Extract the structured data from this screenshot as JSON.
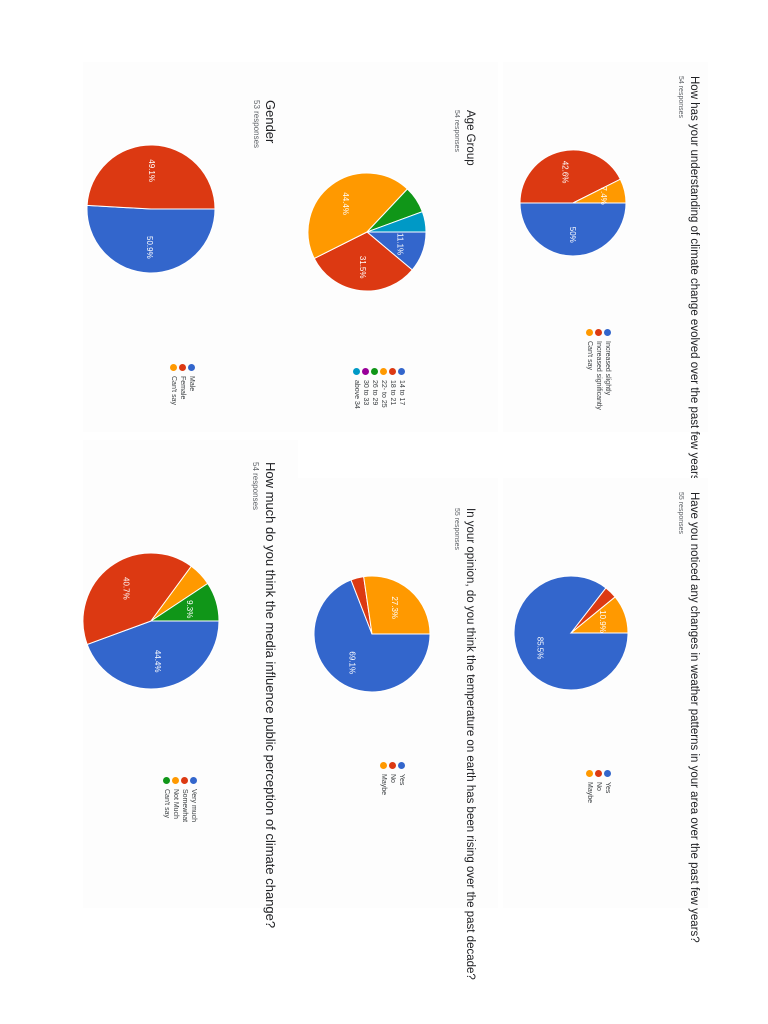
{
  "colors": {
    "blue": "#3366cc",
    "red": "#dc3912",
    "orange": "#ff9900",
    "green": "#109618",
    "purple": "#990099",
    "cyan": "#0099c6"
  },
  "chart_data": [
    {
      "type": "pie",
      "title": "How has your understanding of climate change evolved over the past few years?",
      "subtitle": "54 responses",
      "categories": [
        "Increased slightly",
        "Increased significantly",
        "Can't say"
      ],
      "values": [
        50.0,
        42.6,
        7.4
      ],
      "data_labels": [
        "50%",
        "42.6%",
        "7.4%"
      ],
      "colors": [
        "#3366cc",
        "#dc3912",
        "#ff9900"
      ],
      "legend_position": "right"
    },
    {
      "type": "pie",
      "title": "Have you noticed any changes in weather patterns in your area over the past few years?",
      "subtitle": "55 responses",
      "categories": [
        "Yes",
        "No",
        "Maybe"
      ],
      "values": [
        85.5,
        3.6,
        10.9
      ],
      "data_labels": [
        "85.5%",
        "",
        "10.9%"
      ],
      "colors": [
        "#3366cc",
        "#dc3912",
        "#ff9900"
      ],
      "legend_position": "right"
    },
    {
      "type": "pie",
      "title": "Age Group",
      "subtitle": "54 responses",
      "categories": [
        "14 to 17",
        "18 to 21",
        "22- to 25",
        "26 to 29",
        "30 to 33",
        "above 34"
      ],
      "values": [
        11.1,
        31.5,
        44.4,
        7.4,
        0,
        5.6
      ],
      "data_labels": [
        "11.1%",
        "31.5%",
        "44.4%",
        "",
        "",
        ""
      ],
      "colors": [
        "#3366cc",
        "#dc3912",
        "#ff9900",
        "#109618",
        "#990099",
        "#0099c6"
      ],
      "legend_position": "right"
    },
    {
      "type": "pie",
      "title": "In your opinion, do you think the temperature on earth has been rising over the past decade?",
      "subtitle": "55 responses",
      "categories": [
        "Yes",
        "No",
        "Maybe"
      ],
      "values": [
        69.1,
        3.6,
        27.3
      ],
      "data_labels": [
        "69.1%",
        "",
        "27.3%"
      ],
      "colors": [
        "#3366cc",
        "#dc3912",
        "#ff9900"
      ],
      "legend_position": "right"
    },
    {
      "type": "pie",
      "title": "Gender",
      "subtitle": "53 responses",
      "categories": [
        "Male",
        "Female",
        "Can't say"
      ],
      "values": [
        50.9,
        49.1,
        0
      ],
      "data_labels": [
        "50.9%",
        "49.1%",
        ""
      ],
      "colors": [
        "#3366cc",
        "#dc3912",
        "#ff9900"
      ],
      "legend_position": "right"
    },
    {
      "type": "pie",
      "title": "How much do you think the media influence public perception of climate change?",
      "subtitle": "54 responses",
      "categories": [
        "Very much",
        "Somewhat",
        "Not Much",
        "Can't say"
      ],
      "values": [
        44.4,
        40.7,
        5.6,
        9.3
      ],
      "data_labels": [
        "44.4%",
        "40.7%",
        "",
        "9.3%"
      ],
      "colors": [
        "#3366cc",
        "#dc3912",
        "#ff9900",
        "#109618"
      ],
      "legend_position": "right"
    }
  ]
}
